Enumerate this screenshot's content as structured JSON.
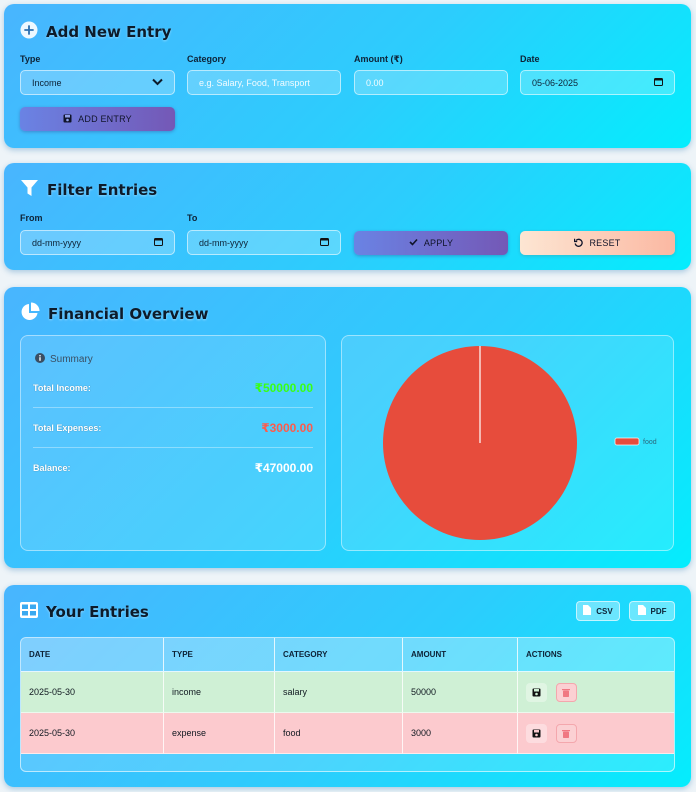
{
  "add_entry": {
    "title": "Add New Entry",
    "type_label": "Type",
    "type_value": "Income",
    "category_label": "Category",
    "category_placeholder": "e.g. Salary, Food, Transport",
    "amount_label": "Amount (₹)",
    "amount_placeholder": "0.00",
    "date_label": "Date",
    "date_value": "05-06-2025",
    "add_button": "ADD ENTRY"
  },
  "filter": {
    "title": "Filter Entries",
    "from_label": "From",
    "from_placeholder": "dd-mm-yyyy",
    "to_label": "To",
    "to_placeholder": "dd-mm-yyyy",
    "apply_button": "APPLY",
    "reset_button": "RESET"
  },
  "overview": {
    "title": "Financial Overview",
    "summary_title": "Summary",
    "rows": [
      {
        "label": "Total Income:",
        "value": "₹50000.00",
        "color": "#39ff14"
      },
      {
        "label": "Total Expenses:",
        "value": "₹3000.00",
        "color": "#ff5a4a"
      },
      {
        "label": "Balance:",
        "value": "₹47000.00",
        "color": "#ffffff"
      }
    ]
  },
  "chart_data": {
    "type": "pie",
    "categories": [
      "food"
    ],
    "values": [
      3000
    ],
    "colors": [
      "#e74c3c"
    ],
    "legend": [
      "food"
    ],
    "legend_position": "right"
  },
  "entries": {
    "title": "Your Entries",
    "csv_button": "CSV",
    "pdf_button": "PDF",
    "columns": [
      "DATE",
      "TYPE",
      "CATEGORY",
      "AMOUNT",
      "ACTIONS"
    ],
    "rows": [
      {
        "date": "2025-05-30",
        "type": "income",
        "category": "salary",
        "amount": "50000"
      },
      {
        "date": "2025-05-30",
        "type": "expense",
        "category": "food",
        "amount": "3000"
      }
    ]
  },
  "colors": {
    "card_gradient_start": "#49b5fe",
    "card_gradient_end": "#04edfd",
    "income_row": "#cff0d5",
    "expense_row": "#fccace",
    "income_value": "#39ff14",
    "expense_value": "#ff5a4a",
    "pie_food": "#e74c3c"
  }
}
